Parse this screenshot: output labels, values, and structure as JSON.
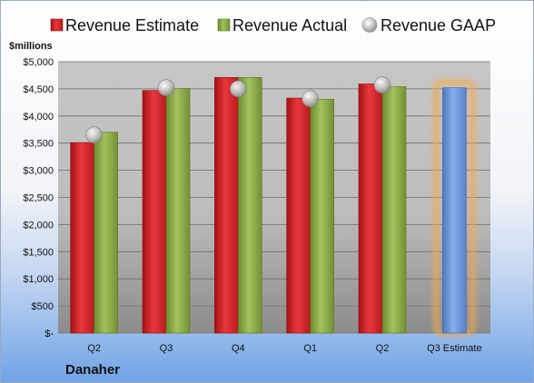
{
  "chart_data": {
    "type": "bar",
    "title": "",
    "y_unit_label": "$millions",
    "company": "Danaher",
    "categories": [
      "Q2",
      "Q3",
      "Q4",
      "Q1",
      "Q2",
      "Q3 Estimate"
    ],
    "ylim": [
      0,
      5000
    ],
    "y_ticks": [
      0,
      500,
      1000,
      1500,
      2000,
      2500,
      3000,
      3500,
      4000,
      4500,
      5000
    ],
    "y_tick_labels": [
      "$-",
      "$500",
      "$1,000",
      "$1,500",
      "$2,000",
      "$2,500",
      "$3,000",
      "$3,500",
      "$4,000",
      "$4,500",
      "$5,000"
    ],
    "grid": true,
    "legend_position": "top",
    "series": [
      {
        "name": "Revenue Estimate",
        "kind": "bar",
        "color": "#e0262b",
        "values": [
          3510,
          4470,
          4710,
          4330,
          4590,
          null
        ]
      },
      {
        "name": "Revenue Actual",
        "kind": "bar",
        "color": "#8fb04a",
        "values": [
          3700,
          4510,
          4710,
          4310,
          4540,
          4520
        ]
      },
      {
        "name": "Revenue GAAP",
        "kind": "marker",
        "color": "#b0b0b0",
        "values": [
          3650,
          4520,
          4500,
          4320,
          4570,
          null
        ]
      }
    ],
    "estimate_bar_color": "#6d97d8",
    "estimate_highlight_color": "#f5a94a"
  }
}
